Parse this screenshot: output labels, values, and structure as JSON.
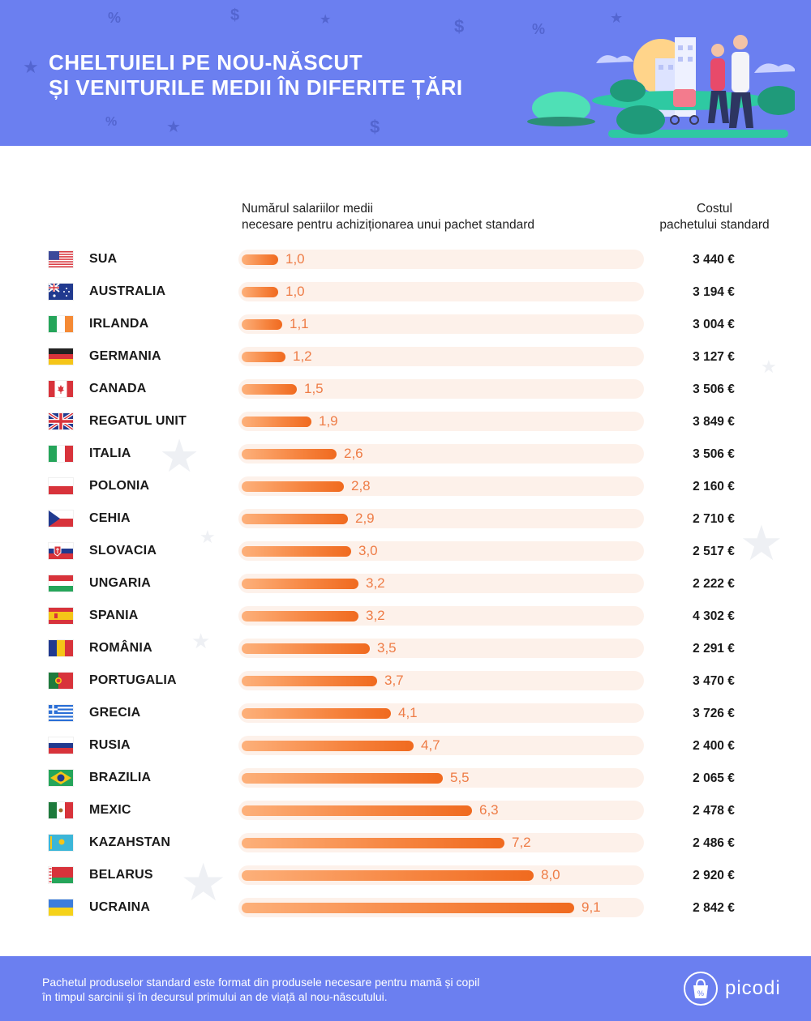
{
  "header": {
    "title_line1": "CHELTUIELI PE NOU-NĂSCUT",
    "title_line2": "ȘI VENITURILE MEDII ÎN DIFERITE ȚĂRI",
    "background_color": "#6b7ff0"
  },
  "columns": {
    "bars_line1": "Numărul salariilor medii",
    "bars_line2": "necesare pentru achiziționarea unui pachet standard",
    "cost_line1": "Costul",
    "cost_line2": "pachetului standard"
  },
  "chart_data": {
    "type": "bar",
    "orientation": "horizontal",
    "categories": [
      "SUA",
      "AUSTRALIA",
      "IRLANDA",
      "GERMANIA",
      "CANADA",
      "REGATUL UNIT",
      "ITALIA",
      "POLONIA",
      "CEHIA",
      "SLOVACIA",
      "UNGARIA",
      "SPANIA",
      "ROMÂNIA",
      "PORTUGALIA",
      "GRECIA",
      "RUSIA",
      "BRAZILIA",
      "MEXIC",
      "KAZAHSTAN",
      "BELARUS",
      "UCRAINA"
    ],
    "values": [
      1.0,
      1.0,
      1.1,
      1.2,
      1.5,
      1.9,
      2.6,
      2.8,
      2.9,
      3.0,
      3.2,
      3.2,
      3.5,
      3.7,
      4.1,
      4.7,
      5.5,
      6.3,
      7.2,
      8.0,
      9.1
    ],
    "value_labels": [
      "1,0",
      "1,0",
      "1,1",
      "1,2",
      "1,5",
      "1,9",
      "2,6",
      "2,8",
      "2,9",
      "3,0",
      "3,2",
      "3,2",
      "3,5",
      "3,7",
      "4,1",
      "4,7",
      "5,5",
      "6,3",
      "7,2",
      "8,0",
      "9,1"
    ],
    "costs": [
      "3 440 €",
      "3 194 €",
      "3 004 €",
      "3 127 €",
      "3 506 €",
      "3 849 €",
      "3 506 €",
      "2 160 €",
      "2 710 €",
      "2 517 €",
      "2 222 €",
      "4 302 €",
      "2 291 €",
      "3 470 €",
      "3 726 €",
      "2 400 €",
      "2 065 €",
      "2 478 €",
      "2 486 €",
      "2 920 €",
      "2 842 €"
    ],
    "flags": [
      "us",
      "au",
      "ie",
      "de",
      "ca",
      "gb",
      "it",
      "pl",
      "cz",
      "sk",
      "hu",
      "es",
      "ro",
      "pt",
      "gr",
      "ru",
      "br",
      "mx",
      "kz",
      "by",
      "ua"
    ],
    "xlim": [
      0,
      10
    ],
    "bar_color": "#f6843f",
    "value_label_color": "#ee7c46",
    "track_color": "#fdf1ea"
  },
  "footer": {
    "note_line1": "Pachetul produselor standard este format din produsele necesare pentru mamă și copil",
    "note_line2": "în timpul sarcinii și în decursul primului an de viață al nou-născutului.",
    "logo_text": "picodi",
    "logo_icon": "picodi-bag-icon"
  }
}
